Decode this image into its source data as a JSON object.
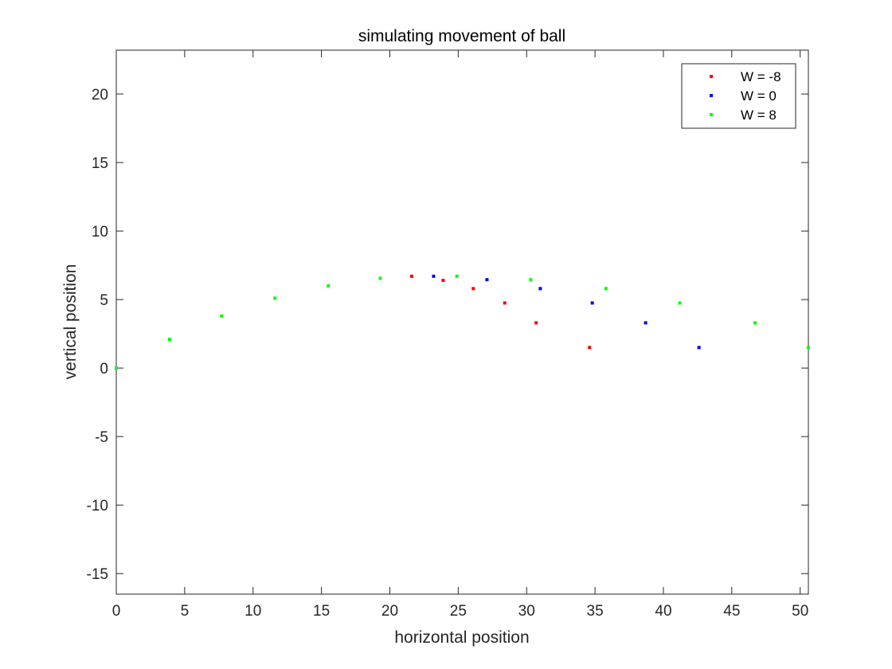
{
  "chart_data": {
    "type": "scatter",
    "title": "simulating movement of ball",
    "xlabel": "horizontal position",
    "ylabel": "vertical position",
    "xlim": [
      0,
      50.6
    ],
    "ylim": [
      -16.5,
      23.2
    ],
    "xticks": [
      0,
      5,
      10,
      15,
      20,
      25,
      30,
      35,
      40,
      45,
      50
    ],
    "yticks": [
      -15,
      -10,
      -5,
      0,
      5,
      10,
      15,
      20
    ],
    "grid": false,
    "legend_position": "top-right",
    "series": [
      {
        "name": "W = -8",
        "color": "#ff0000",
        "points": [
          [
            21.6,
            6.7
          ],
          [
            23.9,
            6.4
          ],
          [
            26.1,
            5.8
          ],
          [
            28.4,
            4.75
          ],
          [
            30.7,
            3.3
          ],
          [
            34.6,
            1.5
          ]
        ]
      },
      {
        "name": "W = 0",
        "color": "#0000ff",
        "points": [
          [
            23.2,
            6.7
          ],
          [
            27.1,
            6.45
          ],
          [
            31.0,
            5.8
          ],
          [
            34.8,
            4.75
          ],
          [
            38.7,
            3.3
          ],
          [
            42.6,
            1.5
          ]
        ]
      },
      {
        "name": "W = 8",
        "color": "#00ff00",
        "points": [
          [
            0.0,
            0.0
          ],
          [
            3.9,
            2.1
          ],
          [
            7.7,
            3.8
          ],
          [
            11.6,
            5.1
          ],
          [
            15.5,
            6.0
          ],
          [
            19.3,
            6.55
          ],
          [
            24.9,
            6.7
          ],
          [
            30.3,
            6.45
          ],
          [
            35.8,
            5.8
          ],
          [
            41.2,
            4.75
          ],
          [
            46.7,
            3.3
          ],
          [
            50.6,
            1.5
          ]
        ]
      }
    ]
  }
}
